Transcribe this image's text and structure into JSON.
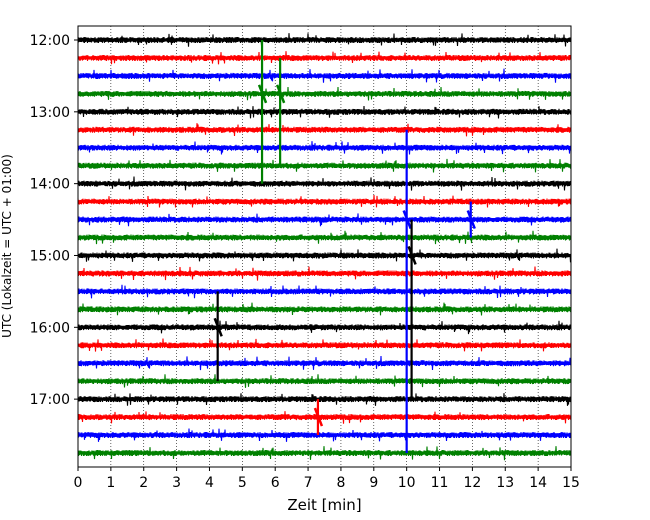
{
  "chart_data": {
    "type": "line",
    "title": "",
    "xlabel": "Zeit  [min]",
    "ylabel": "UTC (Lokalzeit = UTC + 01:00)",
    "xlim": [
      0,
      15
    ],
    "xticks": [
      0,
      1,
      2,
      3,
      4,
      5,
      6,
      7,
      8,
      9,
      10,
      11,
      12,
      13,
      14,
      15
    ],
    "x_grid": true,
    "ytick_labels": [
      "12:00",
      "13:00",
      "14:00",
      "15:00",
      "16:00",
      "17:00"
    ],
    "trace_interval_min": 15,
    "trace_start": "12:00",
    "trace_end": "17:45",
    "trace_colors": [
      "#000000",
      "#ff0000",
      "#0000ff",
      "#008000"
    ],
    "traces": [
      {
        "start": "12:00",
        "color": "#000000"
      },
      {
        "start": "12:15",
        "color": "#ff0000"
      },
      {
        "start": "12:30",
        "color": "#0000ff"
      },
      {
        "start": "12:45",
        "color": "#008000"
      },
      {
        "start": "13:00",
        "color": "#000000"
      },
      {
        "start": "13:15",
        "color": "#ff0000"
      },
      {
        "start": "13:30",
        "color": "#0000ff"
      },
      {
        "start": "13:45",
        "color": "#008000"
      },
      {
        "start": "14:00",
        "color": "#000000"
      },
      {
        "start": "14:15",
        "color": "#ff0000"
      },
      {
        "start": "14:30",
        "color": "#0000ff"
      },
      {
        "start": "14:45",
        "color": "#008000"
      },
      {
        "start": "15:00",
        "color": "#000000"
      },
      {
        "start": "15:15",
        "color": "#ff0000"
      },
      {
        "start": "15:30",
        "color": "#0000ff"
      },
      {
        "start": "15:45",
        "color": "#008000"
      },
      {
        "start": "16:00",
        "color": "#000000"
      },
      {
        "start": "16:15",
        "color": "#ff0000"
      },
      {
        "start": "16:30",
        "color": "#0000ff"
      },
      {
        "start": "16:45",
        "color": "#008000"
      },
      {
        "start": "17:00",
        "color": "#000000"
      },
      {
        "start": "17:15",
        "color": "#ff0000"
      },
      {
        "start": "17:30",
        "color": "#0000ff"
      },
      {
        "start": "17:45",
        "color": "#008000"
      }
    ],
    "spikes": [
      {
        "trace_start": "12:45",
        "x_min": 5.6,
        "top_trace": "12:00",
        "bottom_trace": "14:00",
        "color": "#008000"
      },
      {
        "trace_start": "12:45",
        "x_min": 6.15,
        "top_trace": "12:15",
        "bottom_trace": "13:45",
        "color": "#008000"
      },
      {
        "trace_start": "14:30",
        "x_min": 10.0,
        "top_trace": "13:15",
        "bottom_trace": "17:45",
        "color": "#0000ff"
      },
      {
        "trace_start": "15:00",
        "x_min": 10.15,
        "top_trace": "14:30",
        "bottom_trace": "17:00",
        "color": "#000000"
      },
      {
        "trace_start": "16:00",
        "x_min": 4.25,
        "top_trace": "15:30",
        "bottom_trace": "16:45",
        "color": "#000000"
      },
      {
        "trace_start": "14:30",
        "x_min": 11.95,
        "top_trace": "14:15",
        "bottom_trace": "14:45",
        "color": "#0000ff"
      },
      {
        "trace_start": "17:15",
        "x_min": 7.3,
        "top_trace": "17:00",
        "bottom_trace": "17:30",
        "color": "#ff0000"
      }
    ]
  }
}
